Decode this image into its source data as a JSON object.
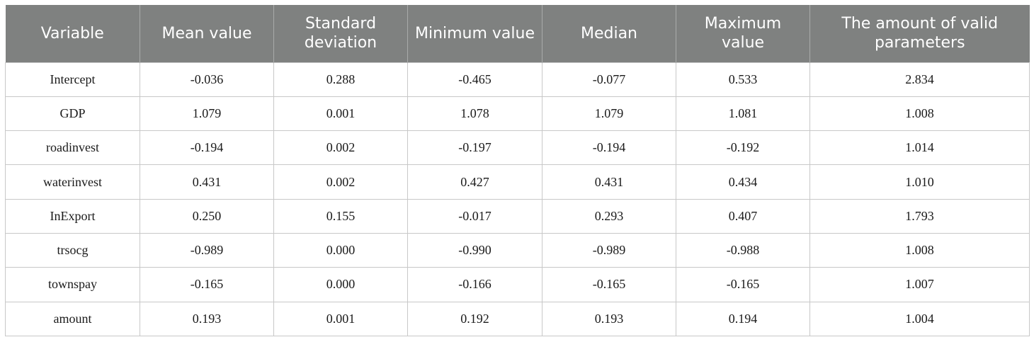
{
  "table": {
    "headers": [
      "Variable",
      "Mean value",
      "Standard deviation",
      "Minimum value",
      "Median",
      "Maximum value",
      "The amount of valid parameters"
    ],
    "rows": [
      [
        "Intercept",
        "-0.036",
        "0.288",
        "-0.465",
        "-0.077",
        "0.533",
        "2.834"
      ],
      [
        "GDP",
        "1.079",
        "0.001",
        "1.078",
        "1.079",
        "1.081",
        "1.008"
      ],
      [
        "roadinvest",
        "-0.194",
        "0.002",
        "-0.197",
        "-0.194",
        "-0.192",
        "1.014"
      ],
      [
        "waterinvest",
        "0.431",
        "0.002",
        "0.427",
        "0.431",
        "0.434",
        "1.010"
      ],
      [
        "InExport",
        "0.250",
        "0.155",
        "-0.017",
        "0.293",
        "0.407",
        "1.793"
      ],
      [
        "trsocg",
        "-0.989",
        "0.000",
        "-0.990",
        "-0.989",
        "-0.988",
        "1.008"
      ],
      [
        "townspay",
        "-0.165",
        "0.000",
        "-0.166",
        "-0.165",
        "-0.165",
        "1.007"
      ],
      [
        "amount",
        "0.193",
        "0.001",
        "0.192",
        "0.193",
        "0.194",
        "1.004"
      ]
    ]
  },
  "colors": {
    "header_bg": "#7f8180",
    "header_text": "#ffffff",
    "grid": "#c8c8c8"
  }
}
